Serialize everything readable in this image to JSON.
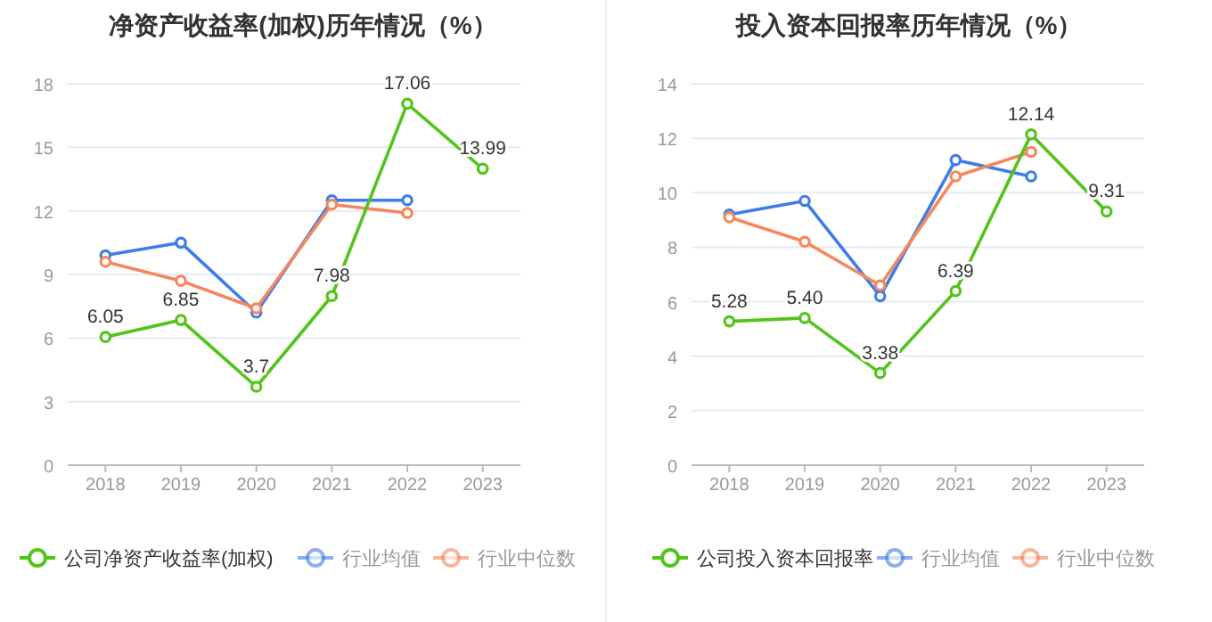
{
  "chart_data": [
    {
      "type": "line",
      "title": "净资产收益率(加权)历年情况（%）",
      "categories": [
        "2018",
        "2019",
        "2020",
        "2021",
        "2022",
        "2023"
      ],
      "ylim": [
        0,
        18
      ],
      "yticks": [
        0,
        3,
        6,
        9,
        12,
        15,
        18
      ],
      "grid": "y",
      "legend": "bottom",
      "marker": "circle",
      "series": [
        {
          "name": "公司净资产收益率(加权)",
          "color": "#52c41a",
          "values": [
            6.05,
            6.85,
            3.7,
            7.98,
            17.06,
            13.99
          ],
          "value_labels": [
            "6.05",
            "6.85",
            "3.7",
            "7.98",
            "17.06",
            "13.99"
          ]
        },
        {
          "name": "行业均值",
          "color": "#3e7ce8",
          "values": [
            9.9,
            10.5,
            7.2,
            12.5,
            12.5,
            null
          ]
        },
        {
          "name": "行业中位数",
          "color": "#f5875c",
          "values": [
            9.6,
            8.7,
            7.4,
            12.3,
            11.9,
            null
          ]
        }
      ]
    },
    {
      "type": "line",
      "title": "投入资本回报率历年情况（%）",
      "categories": [
        "2018",
        "2019",
        "2020",
        "2021",
        "2022",
        "2023"
      ],
      "ylim": [
        0,
        14
      ],
      "yticks": [
        0,
        2,
        4,
        6,
        8,
        10,
        12,
        14
      ],
      "grid": "y",
      "legend": "bottom",
      "marker": "circle",
      "series": [
        {
          "name": "公司投入资本回报率",
          "color": "#52c41a",
          "values": [
            5.28,
            5.4,
            3.38,
            6.39,
            12.14,
            9.31
          ],
          "value_labels": [
            "5.28",
            "5.40",
            "3.38",
            "6.39",
            "12.14",
            "9.31"
          ]
        },
        {
          "name": "行业均值",
          "color": "#3e7ce8",
          "values": [
            9.2,
            9.7,
            6.2,
            11.2,
            10.6,
            null
          ]
        },
        {
          "name": "行业中位数",
          "color": "#f5875c",
          "values": [
            9.1,
            8.2,
            6.6,
            10.6,
            11.5,
            null
          ]
        }
      ]
    }
  ]
}
